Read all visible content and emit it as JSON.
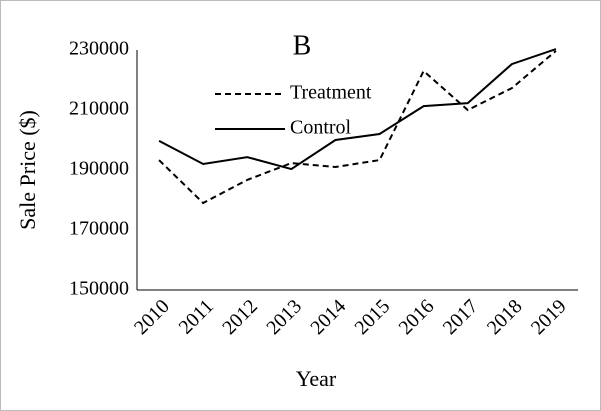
{
  "chart_data": {
    "type": "line",
    "title": "B",
    "x_label": "Year",
    "y_label": "Sale Price ($)",
    "categories": [
      "2010",
      "2011",
      "2012",
      "2013",
      "2014",
      "2015",
      "2016",
      "2017",
      "2018",
      "2019"
    ],
    "series": [
      {
        "name": "Treatment",
        "color": "#000000",
        "dash": true,
        "values": [
          193300,
          179000,
          186700,
          192300,
          191000,
          193300,
          223000,
          210000,
          217300,
          229700
        ]
      },
      {
        "name": "Control",
        "color": "#000000",
        "dash": false,
        "values": [
          199700,
          192000,
          194300,
          190300,
          200000,
          202000,
          211300,
          212300,
          225300,
          230300
        ]
      }
    ],
    "ylim": [
      150000,
      230000
    ],
    "yticks": [
      150000,
      170000,
      190000,
      210000,
      230000
    ],
    "grid": false,
    "legend": "upper left"
  }
}
